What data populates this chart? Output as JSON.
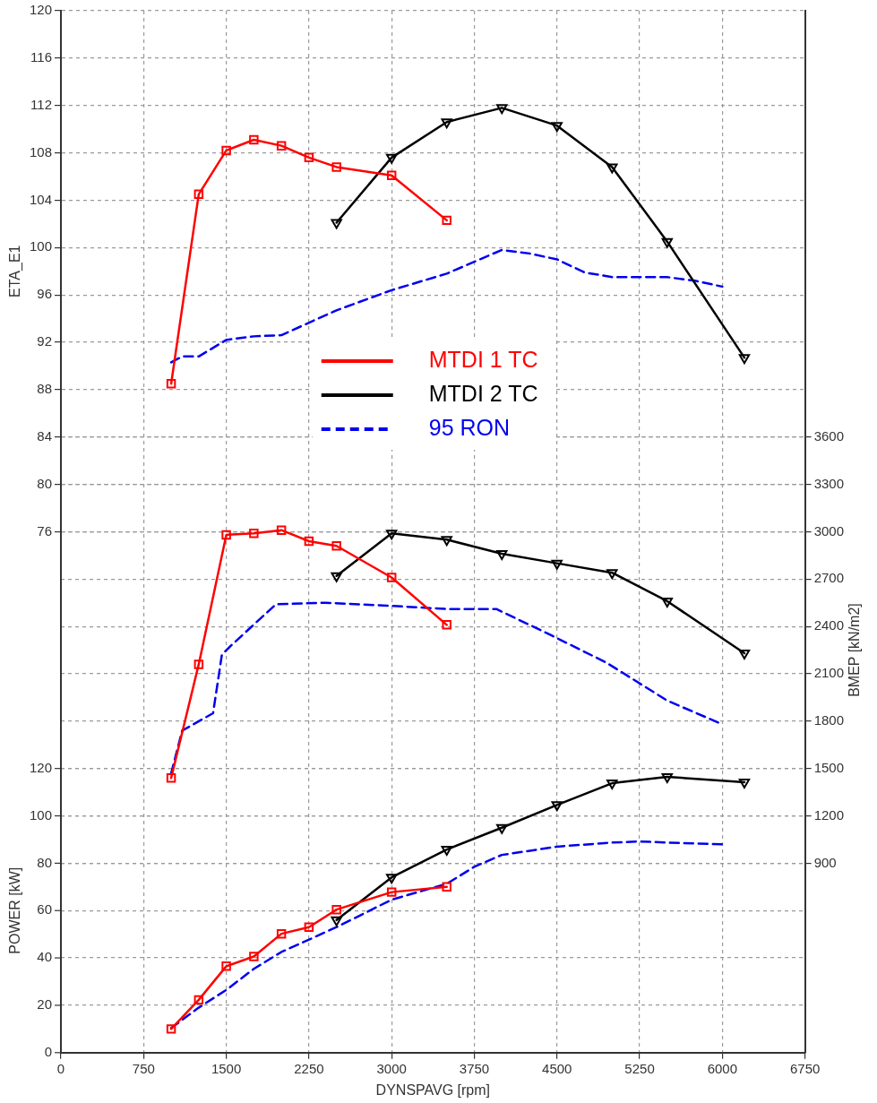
{
  "chart_data": {
    "type": "line",
    "xlabel": "DYNSPAVG [rpm]",
    "ylabel": "ETA_E1",
    "y2label": "BMEP [kN/m2]",
    "y3label": "POWER [kW]",
    "xlim": [
      0,
      6750
    ],
    "xticks": [
      0,
      750,
      1500,
      2250,
      3000,
      3750,
      4500,
      5250,
      6000,
      6750
    ],
    "ylim": [
      32,
      120
    ],
    "yticks": [
      76,
      80,
      84,
      88,
      92,
      96,
      100,
      104,
      108,
      112,
      116,
      120
    ],
    "y2lim": [
      -300,
      6300
    ],
    "y2ticks": [
      900,
      1200,
      1500,
      1800,
      2100,
      2400,
      2700,
      3000,
      3300,
      3600
    ],
    "y3lim": [
      0,
      440
    ],
    "y3ticks": [
      0,
      20,
      40,
      60,
      80,
      100,
      120
    ],
    "grid": true,
    "legend": "center",
    "series": [
      {
        "name": "MTDI 1 TC",
        "color": "#ff0000",
        "axis": "y",
        "marker": "square",
        "line_style": "solid",
        "x": [
          1000,
          1250,
          1500,
          1750,
          2000,
          2250,
          2500,
          3000,
          3500
        ],
        "values": [
          88.5,
          104.5,
          108.2,
          109.1,
          108.6,
          107.6,
          106.8,
          106.1,
          102.3
        ]
      },
      {
        "name": "MTDI 2 TC",
        "color": "#000000",
        "axis": "y",
        "marker": "triangle",
        "line_style": "solid",
        "x": [
          2500,
          3000,
          3500,
          4000,
          4500,
          5000,
          5500,
          6200
        ],
        "values": [
          102.1,
          107.6,
          110.6,
          111.8,
          110.3,
          106.8,
          100.5,
          90.7
        ]
      },
      {
        "name": "95 RON",
        "color": "#0000ee",
        "axis": "y",
        "marker": "none",
        "line_style": "dashed",
        "x": [
          1000,
          1100,
          1250,
          1500,
          1750,
          2000,
          2500,
          3000,
          3500,
          3750,
          4000,
          4250,
          4500,
          4750,
          5000,
          5500,
          5750,
          6000
        ],
        "values": [
          90.3,
          90.8,
          90.8,
          92.2,
          92.5,
          92.6,
          94.7,
          96.4,
          97.8,
          98.8,
          99.8,
          99.5,
          99.0,
          97.9,
          97.5,
          97.5,
          97.2,
          96.7
        ]
      },
      {
        "color": "#ff0000",
        "axis": "y2",
        "marker": "square",
        "line_style": "solid",
        "x": [
          1000,
          1250,
          1500,
          1750,
          2000,
          2250,
          2500,
          3000,
          3500
        ],
        "values": [
          1440,
          2160,
          2980,
          2990,
          3010,
          2940,
          2910,
          2710,
          2410
        ]
      },
      {
        "color": "#000000",
        "axis": "y2",
        "marker": "triangle",
        "line_style": "solid",
        "x": [
          2500,
          3000,
          3500,
          4000,
          4500,
          5000,
          5500,
          6200
        ],
        "values": [
          2720,
          2990,
          2950,
          2860,
          2800,
          2740,
          2560,
          2230
        ]
      },
      {
        "color": "#0000ee",
        "axis": "y2",
        "marker": "none",
        "line_style": "dashed",
        "x": [
          1000,
          1100,
          1380,
          1460,
          1530,
          1950,
          2400,
          3000,
          3500,
          3950,
          4400,
          4950,
          5500,
          6000
        ],
        "values": [
          1470,
          1740,
          1850,
          2220,
          2270,
          2540,
          2550,
          2530,
          2510,
          2510,
          2360,
          2170,
          1930,
          1780
        ]
      },
      {
        "color": "#ff0000",
        "axis": "y3",
        "marker": "square",
        "line_style": "solid",
        "x": [
          1000,
          1250,
          1500,
          1750,
          2000,
          2250,
          2500,
          3000,
          3500
        ],
        "values": [
          10,
          22.3,
          36.5,
          40.6,
          50.2,
          53,
          60.4,
          67.8,
          70
        ]
      },
      {
        "color": "#000000",
        "axis": "y3",
        "marker": "triangle",
        "line_style": "solid",
        "x": [
          2500,
          3000,
          3500,
          4000,
          4500,
          5000,
          5500,
          6200
        ],
        "values": [
          56,
          74,
          85.8,
          95,
          104.6,
          113.8,
          116.5,
          114.2
        ]
      },
      {
        "color": "#0000ee",
        "axis": "y3",
        "marker": "none",
        "line_style": "dashed",
        "x": [
          1000,
          1250,
          1500,
          1750,
          2000,
          2500,
          3000,
          3500,
          3750,
          4000,
          4500,
          5000,
          5250,
          5500,
          6000
        ],
        "values": [
          10.4,
          19,
          26.5,
          35.4,
          42.5,
          53,
          64.6,
          71.3,
          78.5,
          83.5,
          87,
          88.7,
          89.2,
          88.7,
          88
        ]
      }
    ]
  }
}
